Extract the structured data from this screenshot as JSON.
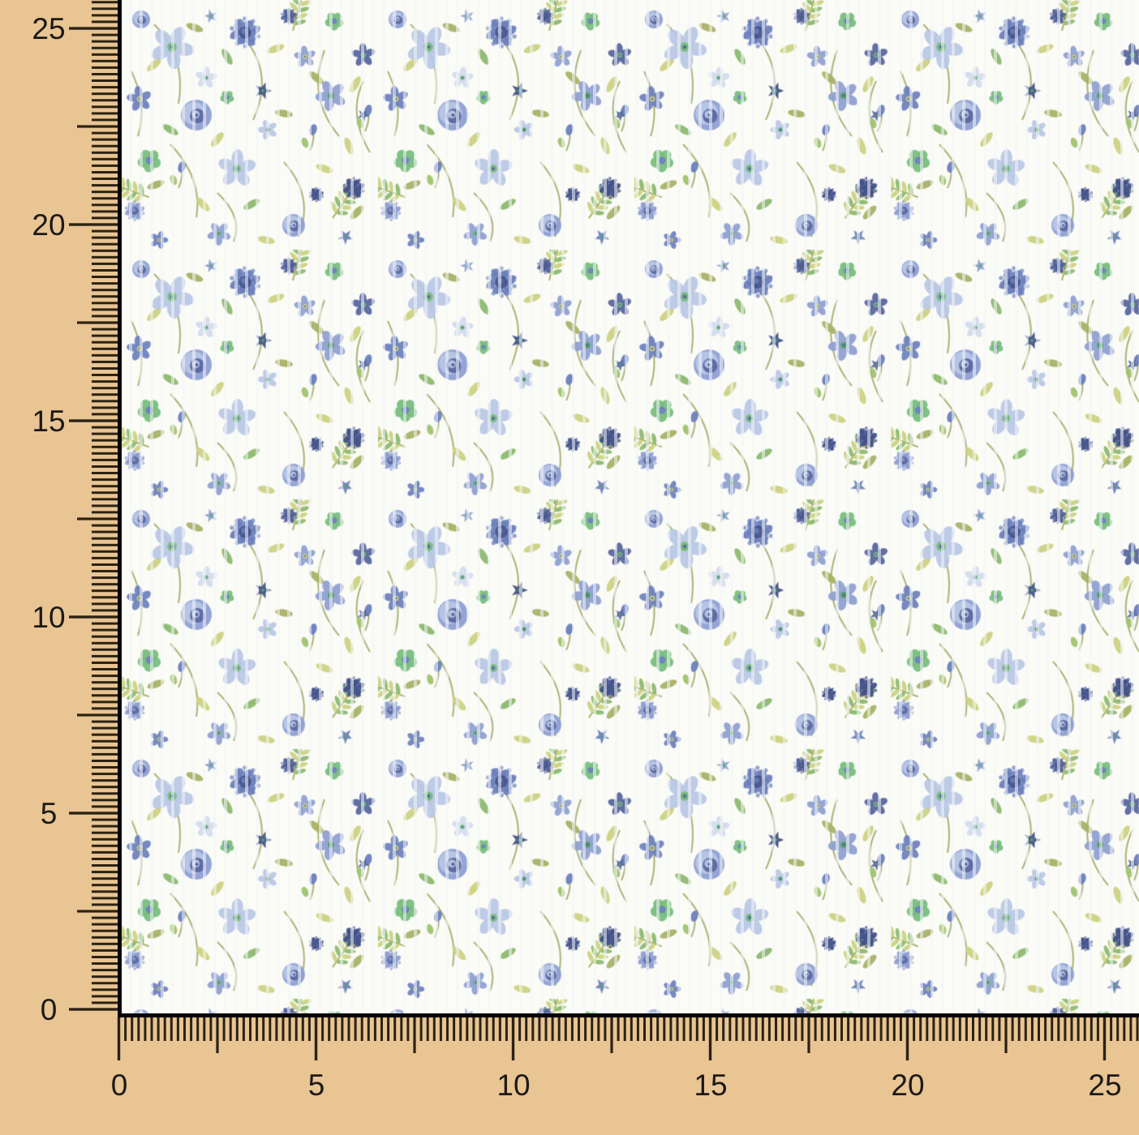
{
  "rulers": {
    "vertical_labels_top_to_bottom": [
      "25",
      "20",
      "15",
      "10",
      "5",
      "0"
    ],
    "horizontal_labels_left_to_right": [
      "0",
      "5",
      "10",
      "15",
      "20",
      "25"
    ],
    "background_color": "#e8c593",
    "tick_color": "#2b2213",
    "label_color": "#1c1915",
    "fabric_edge_line_color": "#060606"
  },
  "fabric": {
    "ground_color": "#fcfcf6",
    "palette": {
      "periwinkle_light": "#b9c7e6",
      "periwinkle": "#8d9fd2",
      "blue_violet": "#6a7fbe",
      "slate_blue": "#55639f",
      "navy": "#41508c",
      "pale_blue": "#d3dcef",
      "green": "#74bd7b",
      "green_deep": "#53a561",
      "leaf_green": "#8cb96d",
      "leaf_yellow_green": "#ccd17f",
      "leaf_olive": "#a9b164",
      "stem_olive": "#99a35e",
      "bud_green": "#9fc36b"
    }
  }
}
